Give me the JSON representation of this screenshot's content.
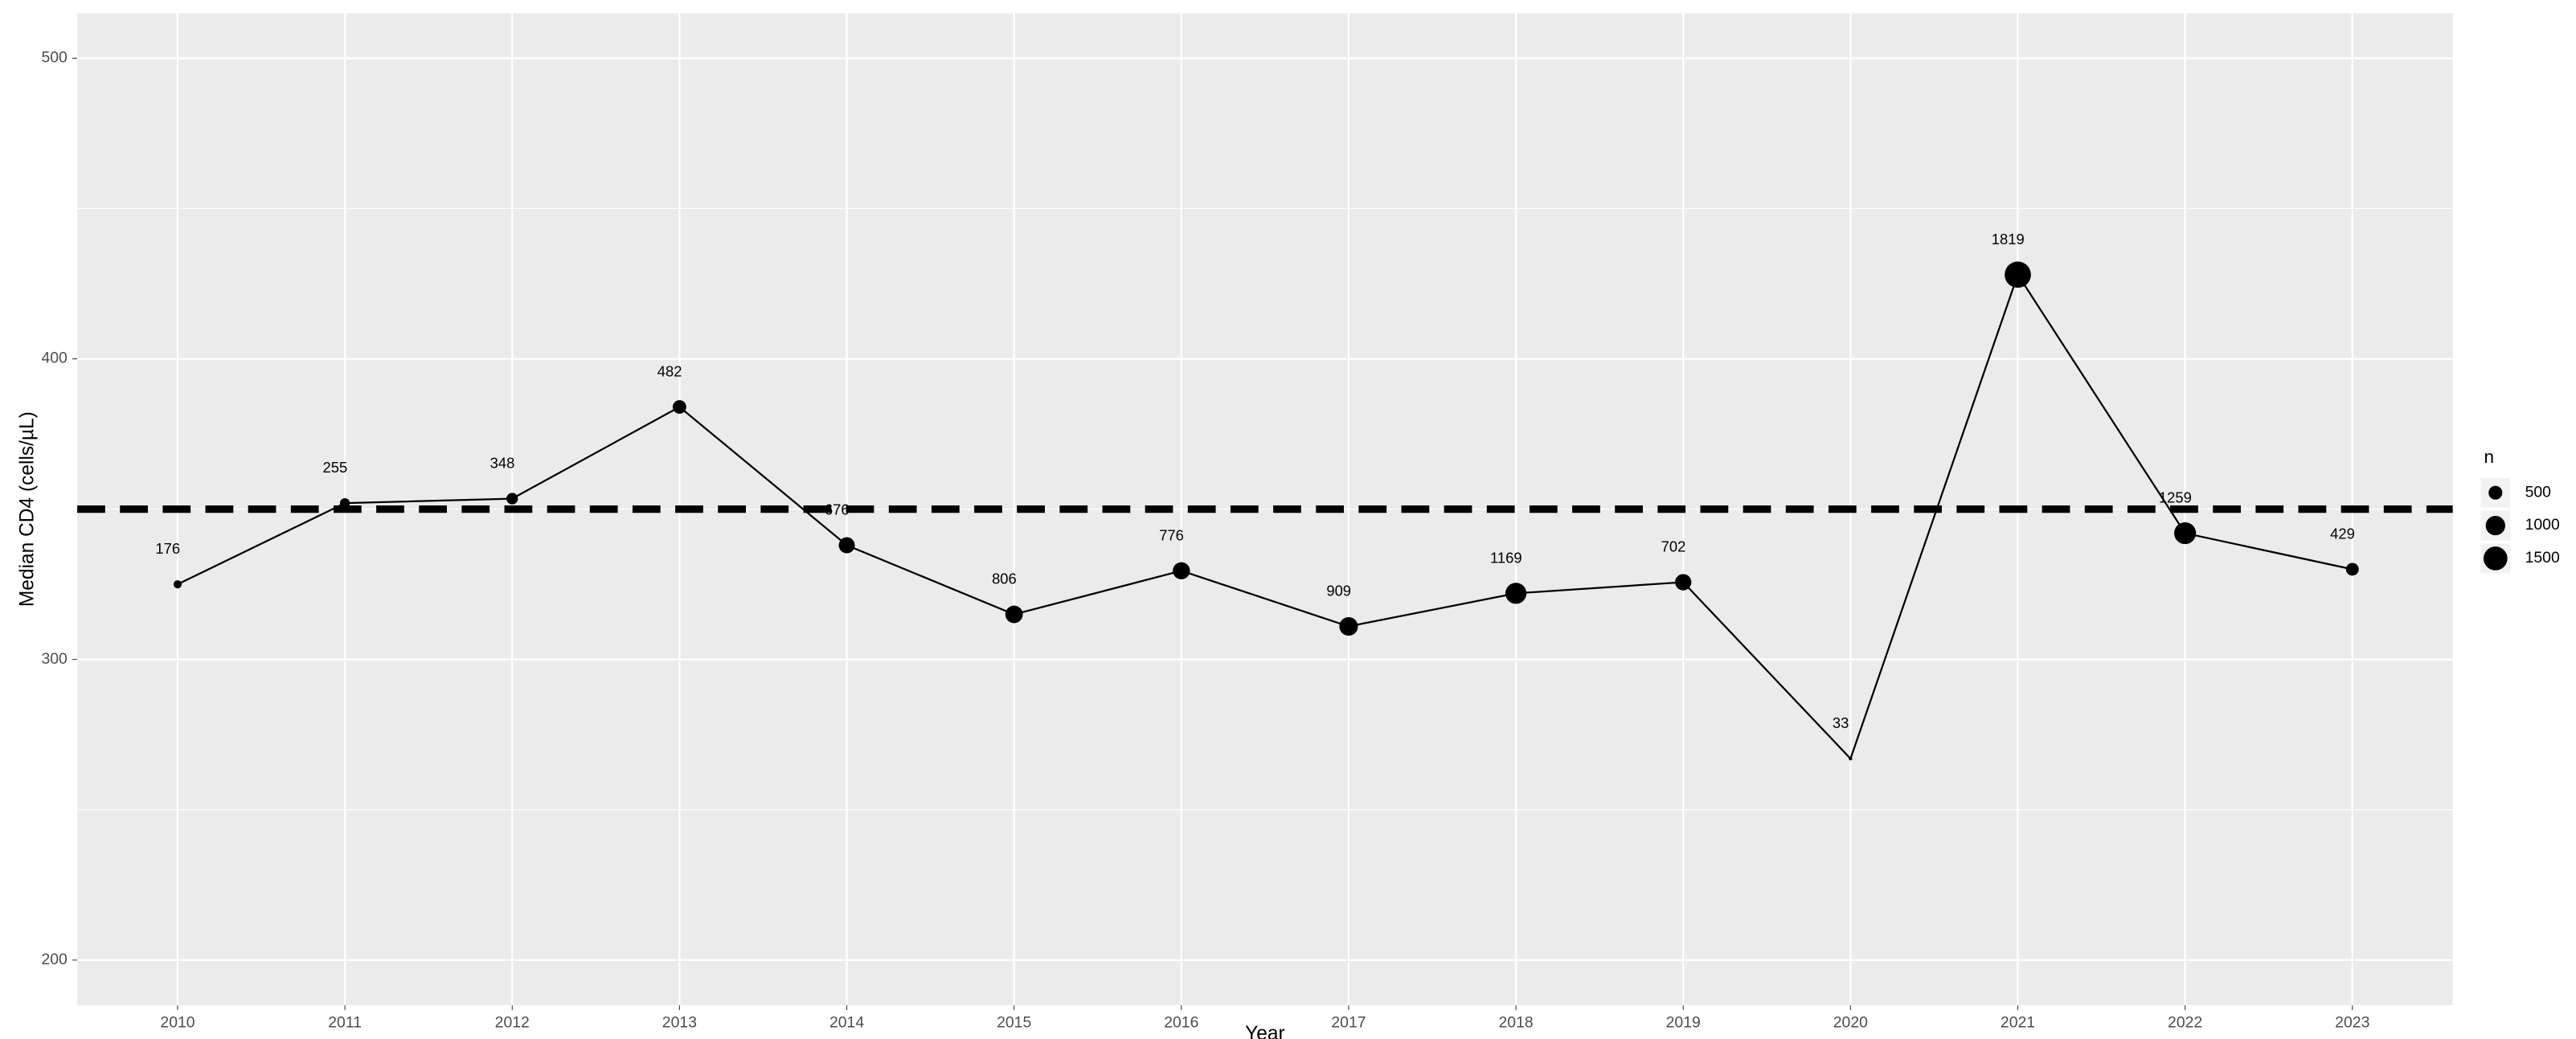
{
  "chart_data": {
    "type": "line",
    "y_label": "Median CD4 (cells/µL)",
    "x_label": "Year",
    "x": [
      2010,
      2011,
      2012,
      2013,
      2014,
      2015,
      2016,
      2017,
      2018,
      2019,
      2020,
      2021,
      2022,
      2023
    ],
    "values": [
      325,
      352,
      353.5,
      384,
      338,
      315,
      329.5,
      311,
      322,
      325.7,
      267,
      428,
      342,
      330
    ],
    "sizes": [
      176,
      255,
      348,
      482,
      676,
      806,
      776,
      909,
      1169,
      702,
      33,
      1819,
      1259,
      429
    ],
    "color": "#000000",
    "reference_line": 350,
    "xlim": [
      2009.4,
      2023.6
    ],
    "xticks": [
      2010,
      2011,
      2012,
      2013,
      2014,
      2015,
      2016,
      2017,
      2018,
      2019,
      2020,
      2021,
      2022,
      2023
    ],
    "ylim": [
      185,
      515
    ],
    "yticks": [
      200,
      300,
      400,
      500
    ],
    "grid": true,
    "size_legend": {
      "title": "n",
      "values": [
        500,
        1000,
        1500
      ]
    }
  }
}
